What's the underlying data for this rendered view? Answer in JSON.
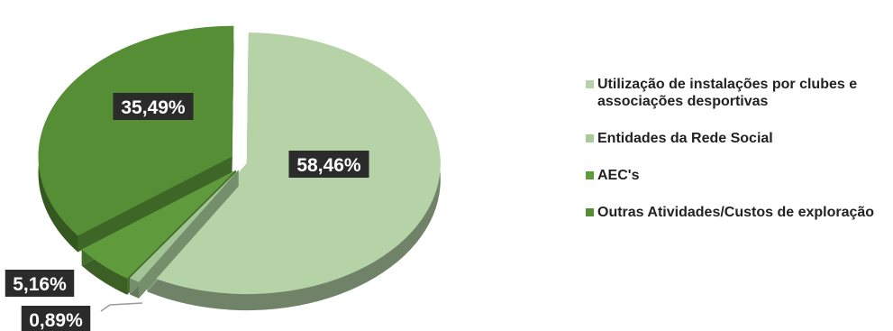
{
  "chart_data": {
    "type": "pie",
    "style": "3d-exploded",
    "categories": [
      "Utilização de instalações por clubes e associações desportivas",
      "Entidades da Rede Social",
      "AEC's",
      "Outras Atividades/Custos de exploração"
    ],
    "values": [
      58.46,
      0.89,
      5.16,
      35.49
    ],
    "data_labels": [
      "58,46%",
      "0,89%",
      "5,16%",
      "35,49%"
    ],
    "colors": [
      "#b5d3a7",
      "#a3c595",
      "#5f9a3c",
      "#568e35"
    ],
    "legend_position": "right"
  },
  "legend": {
    "items": [
      {
        "label": "Utilização de instalações por clubes e associações desportivas",
        "color": "#b5d3a7"
      },
      {
        "label": "Entidades da Rede Social",
        "color": "#a7cb98"
      },
      {
        "label": "AEC's",
        "color": "#5f9a3c"
      },
      {
        "label": "Outras Atividades/Custos de exploração",
        "color": "#568e35"
      }
    ]
  }
}
